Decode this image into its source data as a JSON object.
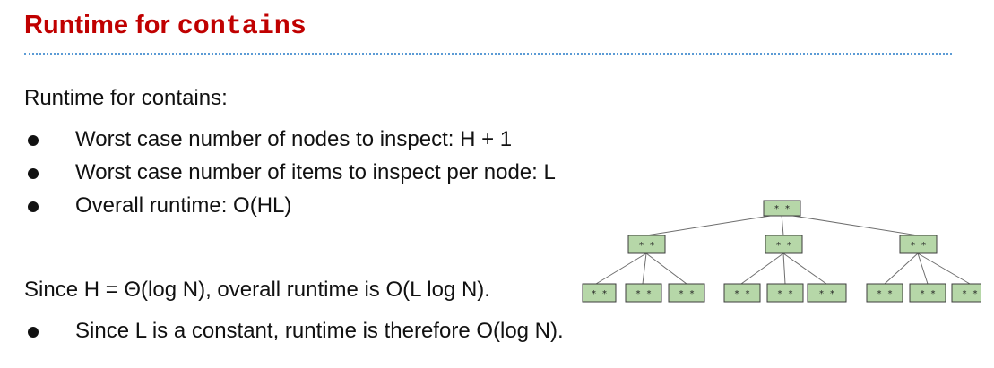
{
  "slide": {
    "title_prefix": "Runtime for ",
    "title_code": "contains",
    "intro": "Runtime for contains:",
    "bullets": [
      "Worst case number of nodes to inspect: H + 1",
      "Worst case number of items to inspect per node: L",
      "Overall runtime: O(HL)"
    ],
    "since_line": "Since H = Θ(log N), overall runtime is O(L log N).",
    "since_bullet": "Since L is a constant, runtime is therefore O(log N)."
  },
  "tree": {
    "root_label": "* *",
    "mid_labels": [
      "* *",
      "* *",
      "* *"
    ],
    "leaf_labels": [
      "* *",
      "* *",
      "* *",
      "* *",
      "* *",
      "* *",
      "* *",
      "* *",
      "* *"
    ]
  },
  "colors": {
    "title": "#c00000",
    "divider": "#5b9bd5",
    "node_fill": "#b6d7a8"
  }
}
